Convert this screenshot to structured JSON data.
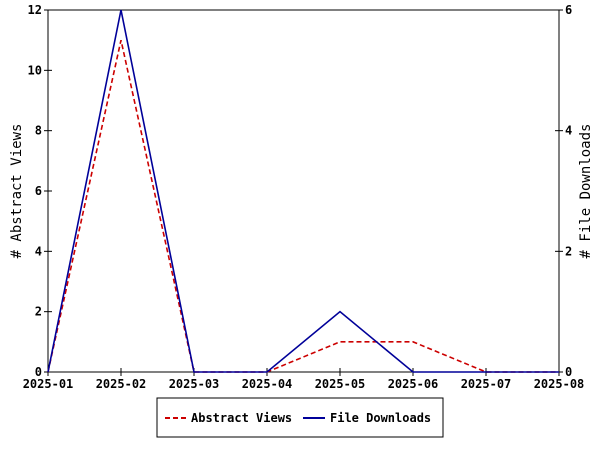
{
  "chart_data": {
    "type": "line",
    "title": "",
    "xlabel": "",
    "ylabel_left": "# Abstract Views",
    "ylabel_right": "# File Downloads",
    "x": [
      "2025-01",
      "2025-02",
      "2025-03",
      "2025-04",
      "2025-05",
      "2025-06",
      "2025-07",
      "2025-08"
    ],
    "ylim_left": [
      0,
      12
    ],
    "ylim_right": [
      0,
      6
    ],
    "yticks_left": [
      "0",
      "2",
      "4",
      "6",
      "8",
      "10",
      "12"
    ],
    "yticks_right": [
      "0",
      "2",
      "4",
      "6"
    ],
    "series": [
      {
        "name": "Abstract Views",
        "axis": "left",
        "color": "#cc0000",
        "dash": "dashed",
        "x": [
          "2025-01",
          "2025-02",
          "2025-03",
          "2025-04",
          "2025-05",
          "2025-06",
          "2025-07",
          "2025-08"
        ],
        "values": [
          0,
          11,
          0,
          0,
          1,
          1,
          0,
          0
        ]
      },
      {
        "name": "File Downloads",
        "axis": "right",
        "color": "#000099",
        "dash": "solid",
        "x": [
          "2025-01",
          "2025-02",
          "2025-03",
          "2025-04",
          "2025-05",
          "2025-06",
          "2025-07",
          "2025-08"
        ],
        "values": [
          0,
          6,
          0,
          0,
          1,
          0,
          0,
          0
        ]
      }
    ],
    "legend": {
      "position": "bottom-center",
      "entries": [
        "Abstract Views",
        "File Downloads"
      ]
    },
    "grid": false
  }
}
